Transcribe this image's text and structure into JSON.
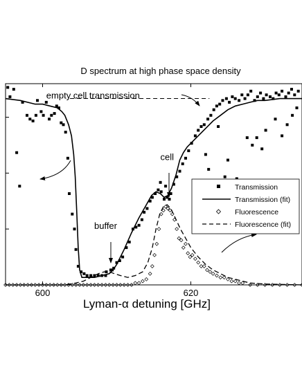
{
  "chart_data": {
    "type": "scatter",
    "title": "D spectrum at high phase space density",
    "xlabel": "Lyman-α detuning [GHz]",
    "ylabel": "",
    "xlim": [
      595,
      635
    ],
    "ylim": [
      0,
      1.08
    ],
    "x_ticks": [
      600,
      620
    ],
    "y_ticks": [
      0.3,
      0.6,
      0.9
    ],
    "grid": false,
    "legend_position": "right-middle",
    "legend": [
      {
        "label": "Transmission",
        "style": "square-marker"
      },
      {
        "label": "Transmission (fit)",
        "style": "solid-line"
      },
      {
        "label": "Fluorescence",
        "style": "open-diamond-marker"
      },
      {
        "label": "Fluorescence (fit)",
        "style": "dashed-line"
      }
    ],
    "annotations": [
      {
        "text": "empty cell transmission",
        "x": 600.5,
        "y": 1.0
      },
      {
        "text": "buffer",
        "x": 608.5,
        "y": 0.3
      },
      {
        "text": "cell",
        "x": 616.8,
        "y": 0.67
      }
    ],
    "reference_line": {
      "name": "empty cell transmission",
      "y": 1.0,
      "x_start": 603.7,
      "x_end": 622.5
    },
    "series": [
      {
        "name": "Transmission",
        "marker": "square",
        "points": [
          [
            595.3,
            1.06
          ],
          [
            595.6,
            1.01
          ],
          [
            596.1,
            1.05
          ],
          [
            596.5,
            0.71
          ],
          [
            596.9,
            0.53
          ],
          [
            597.3,
            0.98
          ],
          [
            597.9,
            0.91
          ],
          [
            598.3,
            0.89
          ],
          [
            598.7,
            0.88
          ],
          [
            599.1,
            0.91
          ],
          [
            599.3,
            0.99
          ],
          [
            599.8,
            0.93
          ],
          [
            600.1,
            0.91
          ],
          [
            600.5,
            0.98
          ],
          [
            600.9,
            0.89
          ],
          [
            601.2,
            0.91
          ],
          [
            601.6,
            0.92
          ],
          [
            601.9,
            0.96
          ],
          [
            602.2,
            0.95
          ],
          [
            602.5,
            0.87
          ],
          [
            602.8,
            0.86
          ],
          [
            603.1,
            0.82
          ],
          [
            603.4,
            0.68
          ],
          [
            603.6,
            0.49
          ],
          [
            604.0,
            0.38
          ],
          [
            604.3,
            0.3
          ],
          [
            604.5,
            0.19
          ],
          [
            604.8,
            0.1
          ],
          [
            605.2,
            0.07
          ],
          [
            605.6,
            0.06
          ],
          [
            606.0,
            0.05
          ],
          [
            606.5,
            0.05
          ],
          [
            607.0,
            0.05
          ],
          [
            607.5,
            0.05
          ],
          [
            608.0,
            0.05
          ],
          [
            608.5,
            0.05
          ],
          [
            609.2,
            0.08
          ],
          [
            609.6,
            0.09
          ],
          [
            610.0,
            0.12
          ],
          [
            610.4,
            0.13
          ],
          [
            610.8,
            0.15
          ],
          [
            611.3,
            0.2
          ],
          [
            611.7,
            0.23
          ],
          [
            612.2,
            0.3
          ],
          [
            612.6,
            0.31
          ],
          [
            613.0,
            0.32
          ],
          [
            613.4,
            0.35
          ],
          [
            613.7,
            0.39
          ],
          [
            614.1,
            0.41
          ],
          [
            614.5,
            0.45
          ],
          [
            614.8,
            0.47
          ],
          [
            615.2,
            0.49
          ],
          [
            615.6,
            0.51
          ],
          [
            616.0,
            0.5
          ],
          [
            616.4,
            0.46
          ],
          [
            616.8,
            0.47
          ],
          [
            617.3,
            0.49
          ],
          [
            617.7,
            0.54
          ],
          [
            618.1,
            0.58
          ],
          [
            618.5,
            0.61
          ],
          [
            618.9,
            0.65
          ],
          [
            619.3,
            0.68
          ],
          [
            619.7,
            0.72
          ],
          [
            620.1,
            0.76
          ],
          [
            620.6,
            0.8
          ],
          [
            621.0,
            0.83
          ],
          [
            621.4,
            0.85
          ],
          [
            621.8,
            0.86
          ],
          [
            622.3,
            0.89
          ],
          [
            622.7,
            0.91
          ],
          [
            623.1,
            0.94
          ],
          [
            623.5,
            0.96
          ],
          [
            623.9,
            0.97
          ],
          [
            624.3,
            0.99
          ],
          [
            624.8,
            1.0
          ],
          [
            625.2,
            0.98
          ],
          [
            625.6,
            1.01
          ],
          [
            626.0,
            1.0
          ],
          [
            626.5,
            0.99
          ],
          [
            626.9,
            1.02
          ],
          [
            627.3,
            1.0
          ],
          [
            627.7,
            1.02
          ],
          [
            628.1,
            1.04
          ],
          [
            628.6,
            0.99
          ],
          [
            629.0,
            1.01
          ],
          [
            629.4,
            1.03
          ],
          [
            629.8,
            1.0
          ],
          [
            630.2,
            1.02
          ],
          [
            630.7,
            1.01
          ],
          [
            631.1,
            1.0
          ],
          [
            631.5,
            1.03
          ],
          [
            631.9,
            1.02
          ],
          [
            632.3,
            1.04
          ],
          [
            632.8,
            1.01
          ],
          [
            633.2,
            1.03
          ],
          [
            633.6,
            1.05
          ],
          [
            634.0,
            1.02
          ],
          [
            634.5,
            1.04
          ],
          [
            608.6,
            0.07
          ],
          [
            609.4,
            0.08
          ],
          [
            615.9,
            0.55
          ],
          [
            616.6,
            0.53
          ],
          [
            617.1,
            0.46
          ],
          [
            622.0,
            0.7
          ],
          [
            622.4,
            0.62
          ],
          [
            623.7,
            0.85
          ],
          [
            624.6,
            0.58
          ],
          [
            625.0,
            0.67
          ],
          [
            626.2,
            0.57
          ],
          [
            627.1,
            0.55
          ],
          [
            627.6,
            0.79
          ],
          [
            628.3,
            0.75
          ],
          [
            628.9,
            0.79
          ],
          [
            629.6,
            0.73
          ],
          [
            630.1,
            0.83
          ],
          [
            631.4,
            0.89
          ],
          [
            632.3,
            0.8
          ],
          [
            633.0,
            0.86
          ],
          [
            633.7,
            0.91
          ],
          [
            634.3,
            0.95
          ]
        ]
      },
      {
        "name": "Transmission (fit)",
        "line": "solid",
        "points": [
          [
            595.0,
            1.0
          ],
          [
            597.0,
            0.99
          ],
          [
            599.0,
            0.97
          ],
          [
            600.0,
            0.97
          ],
          [
            601.0,
            0.96
          ],
          [
            602.0,
            0.95
          ],
          [
            602.6,
            0.93
          ],
          [
            603.0,
            0.91
          ],
          [
            603.5,
            0.86
          ],
          [
            603.9,
            0.8
          ],
          [
            604.2,
            0.7
          ],
          [
            604.4,
            0.58
          ],
          [
            604.6,
            0.4
          ],
          [
            604.8,
            0.2
          ],
          [
            605.0,
            0.08
          ],
          [
            605.3,
            0.04
          ],
          [
            606.0,
            0.04
          ],
          [
            607.0,
            0.04
          ],
          [
            608.0,
            0.05
          ],
          [
            609.0,
            0.06
          ],
          [
            609.5,
            0.08
          ],
          [
            610.0,
            0.11
          ],
          [
            611.0,
            0.19
          ],
          [
            612.0,
            0.28
          ],
          [
            613.0,
            0.36
          ],
          [
            614.0,
            0.43
          ],
          [
            614.7,
            0.48
          ],
          [
            615.3,
            0.5
          ],
          [
            615.9,
            0.49
          ],
          [
            616.4,
            0.47
          ],
          [
            616.9,
            0.48
          ],
          [
            617.4,
            0.52
          ],
          [
            618.0,
            0.59
          ],
          [
            618.5,
            0.67
          ],
          [
            619.0,
            0.71
          ],
          [
            619.5,
            0.74
          ],
          [
            620.0,
            0.76
          ],
          [
            621.0,
            0.8
          ],
          [
            622.0,
            0.84
          ],
          [
            623.0,
            0.88
          ],
          [
            624.0,
            0.91
          ],
          [
            625.0,
            0.94
          ],
          [
            626.0,
            0.96
          ],
          [
            627.0,
            0.97
          ],
          [
            628.0,
            0.98
          ],
          [
            629.0,
            0.99
          ],
          [
            630.0,
            0.99
          ],
          [
            632.0,
            1.0
          ],
          [
            635.0,
            1.0
          ]
        ]
      },
      {
        "name": "Fluorescence",
        "marker": "open-diamond",
        "points": [
          [
            595.0,
            0.0
          ],
          [
            595.5,
            0.0
          ],
          [
            596.0,
            0.0
          ],
          [
            596.5,
            0.0
          ],
          [
            597.0,
            0.0
          ],
          [
            597.5,
            0.0
          ],
          [
            598.0,
            0.0
          ],
          [
            598.5,
            0.0
          ],
          [
            599.0,
            0.0
          ],
          [
            599.5,
            0.0
          ],
          [
            600.0,
            0.0
          ],
          [
            600.5,
            0.0
          ],
          [
            601.0,
            0.0
          ],
          [
            601.5,
            0.0
          ],
          [
            602.0,
            0.0
          ],
          [
            602.5,
            0.0
          ],
          [
            603.0,
            0.0
          ],
          [
            603.5,
            0.0
          ],
          [
            604.0,
            0.0
          ],
          [
            604.5,
            0.0
          ],
          [
            605.0,
            0.0
          ],
          [
            605.5,
            0.0
          ],
          [
            606.0,
            0.0
          ],
          [
            606.5,
            0.0
          ],
          [
            607.0,
            0.0
          ],
          [
            607.5,
            0.0
          ],
          [
            608.0,
            0.0
          ],
          [
            608.5,
            0.0
          ],
          [
            609.0,
            0.0
          ],
          [
            609.5,
            0.0
          ],
          [
            610.0,
            0.0
          ],
          [
            610.5,
            0.0
          ],
          [
            611.0,
            0.0
          ],
          [
            611.5,
            0.0
          ],
          [
            612.0,
            0.0
          ],
          [
            612.5,
            0.01
          ],
          [
            613.0,
            0.01
          ],
          [
            613.5,
            0.02
          ],
          [
            614.0,
            0.03
          ],
          [
            614.5,
            0.06
          ],
          [
            614.8,
            0.1
          ],
          [
            615.1,
            0.16
          ],
          [
            615.4,
            0.22
          ],
          [
            615.7,
            0.3
          ],
          [
            616.0,
            0.38
          ],
          [
            616.3,
            0.4
          ],
          [
            616.6,
            0.42
          ],
          [
            616.9,
            0.41
          ],
          [
            617.2,
            0.4
          ],
          [
            617.5,
            0.38
          ],
          [
            617.8,
            0.35
          ],
          [
            618.1,
            0.3
          ],
          [
            618.4,
            0.25
          ],
          [
            618.7,
            0.24
          ],
          [
            619.0,
            0.2
          ],
          [
            619.3,
            0.22
          ],
          [
            619.6,
            0.17
          ],
          [
            619.9,
            0.15
          ],
          [
            620.2,
            0.16
          ],
          [
            620.6,
            0.14
          ],
          [
            621.0,
            0.12
          ],
          [
            621.4,
            0.1
          ],
          [
            621.8,
            0.1
          ],
          [
            622.2,
            0.08
          ],
          [
            622.6,
            0.07
          ],
          [
            623.0,
            0.06
          ],
          [
            623.5,
            0.05
          ],
          [
            624.0,
            0.04
          ],
          [
            624.5,
            0.04
          ],
          [
            625.0,
            0.03
          ],
          [
            625.5,
            0.02
          ],
          [
            626.0,
            0.02
          ],
          [
            626.5,
            0.01
          ],
          [
            627.0,
            0.01
          ],
          [
            628.0,
            0.0
          ],
          [
            629.0,
            0.0
          ],
          [
            630.0,
            0.0
          ],
          [
            631.0,
            0.0
          ],
          [
            632.0,
            0.0
          ],
          [
            633.0,
            0.0
          ],
          [
            634.0,
            0.0
          ],
          [
            635.0,
            0.0
          ]
        ]
      },
      {
        "name": "Fluorescence (fit)",
        "line": "dashed",
        "points": [
          [
            595.0,
            0.0
          ],
          [
            603.0,
            0.0
          ],
          [
            604.5,
            0.01
          ],
          [
            605.5,
            0.02
          ],
          [
            606.5,
            0.04
          ],
          [
            607.5,
            0.06
          ],
          [
            608.3,
            0.07
          ],
          [
            609.0,
            0.07
          ],
          [
            609.7,
            0.06
          ],
          [
            610.5,
            0.05
          ],
          [
            611.5,
            0.04
          ],
          [
            612.5,
            0.05
          ],
          [
            613.5,
            0.07
          ],
          [
            614.2,
            0.12
          ],
          [
            614.8,
            0.2
          ],
          [
            615.3,
            0.3
          ],
          [
            615.8,
            0.38
          ],
          [
            616.3,
            0.42
          ],
          [
            616.8,
            0.43
          ],
          [
            617.3,
            0.41
          ],
          [
            617.9,
            0.36
          ],
          [
            618.6,
            0.3
          ],
          [
            619.3,
            0.25
          ],
          [
            620.0,
            0.2
          ],
          [
            621.0,
            0.15
          ],
          [
            622.0,
            0.11
          ],
          [
            623.0,
            0.08
          ],
          [
            624.0,
            0.06
          ],
          [
            625.0,
            0.04
          ],
          [
            626.0,
            0.03
          ],
          [
            627.0,
            0.02
          ],
          [
            628.0,
            0.01
          ],
          [
            630.0,
            0.005
          ],
          [
            635.0,
            0.0
          ]
        ]
      }
    ]
  }
}
